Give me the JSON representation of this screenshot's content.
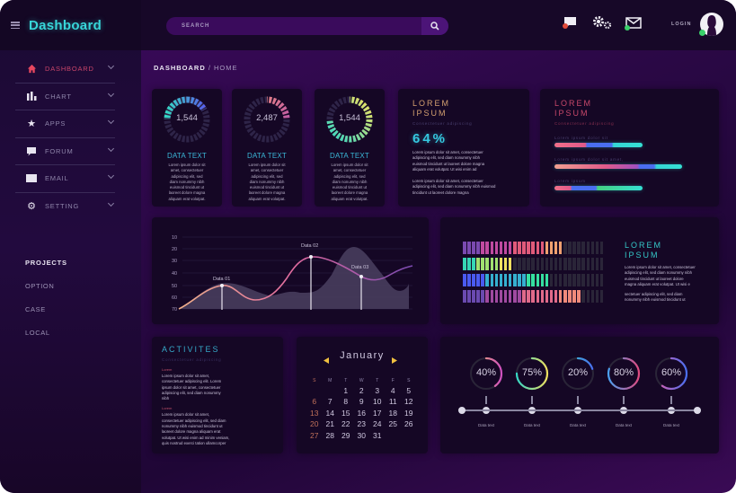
{
  "app": {
    "title": "Dashboard"
  },
  "topbar": {
    "search_placeholder": "SEARCH",
    "login_label": "LOGIN",
    "icons": [
      "chat-icon",
      "settings-gears-icon",
      "mail-icon",
      "search-icon",
      "user-avatar-icon"
    ]
  },
  "sidebar": {
    "items": [
      {
        "label": "DASHBOARD",
        "icon": "home-icon",
        "active": true
      },
      {
        "label": "CHART",
        "icon": "bar-chart-icon"
      },
      {
        "label": "APPS",
        "icon": "star-icon"
      },
      {
        "label": "FORUM",
        "icon": "speech-bubble-icon"
      },
      {
        "label": "EMAIL",
        "icon": "envelope-icon"
      },
      {
        "label": "SETTING",
        "icon": "gears-icon"
      }
    ],
    "projects": {
      "title": "PROJECTS",
      "items": [
        "OPTION",
        "CASE",
        "LOCAL"
      ]
    }
  },
  "breadcrumb": {
    "root": "DASHBOARD",
    "sep": " / ",
    "current": "HOME"
  },
  "stat_cards": [
    {
      "value": "1,544",
      "label": "DATA TEXT",
      "colors": [
        "#35d6c4",
        "#4a6ef0"
      ]
    },
    {
      "value": "2,487",
      "label": "DATA TEXT",
      "colors": [
        "#f08c7a",
        "#c44aa0"
      ]
    },
    {
      "value": "1,544",
      "label": "DATA TEXT",
      "colors": [
        "#f0e060",
        "#35d6c4"
      ]
    }
  ],
  "stat_lorem": [
    "Lorem ipsum dolor sit",
    "amet, consectetuer",
    "adipiscing elit, sed",
    "diam nonummy nibh",
    "euismod tincidunt ut",
    "laoreet dolore magna",
    "aliquam erat volutpat."
  ],
  "percent_card": {
    "title1": "LOREM",
    "title2": "IPSUM",
    "subtitle": "Consectetuer adipiscing",
    "value": "64%",
    "p1": [
      "Lorem ipsum dolor sit amet, consectetuer",
      "adipiscing elit, sed diam nonummy nibh",
      "euismod tincidunt ut laoreet dolore magna",
      "aliquam erat volutpat. Ut wisi enim ad"
    ],
    "p2": [
      "Lorem ipsum dolor sit amet, consectetuer",
      "adipiscing elit, sed diam nonummy nibh euismod",
      "tincidunt ut laoreet dolore magna"
    ]
  },
  "progress_card": {
    "title1": "LOREM",
    "title2": "IPSUM",
    "subtitle": "Consectetuer adipiscing",
    "bars": [
      {
        "label": "Lorem ipsum dolor sit",
        "width": 98
      },
      {
        "label": "Lorem ipsum dolor sit amet,",
        "width": 142
      },
      {
        "label": "Lorem ipsum",
        "width": 98
      }
    ]
  },
  "chart_data": {
    "type": "line",
    "title": "",
    "y_ticks": [
      "10",
      "20",
      "30",
      "40",
      "50",
      "60",
      "70"
    ],
    "ylim": [
      70,
      10
    ],
    "annotations": [
      {
        "label": "Data 01",
        "y": 50
      },
      {
        "label": "Data 02",
        "y": 25
      },
      {
        "label": "Data 03",
        "y": 41
      }
    ],
    "series": [
      {
        "name": "line",
        "values": [
          70,
          50,
          62,
          25,
          41,
          24
        ]
      },
      {
        "name": "area",
        "values": [
          70,
          47,
          57,
          55,
          19,
          60,
          47
        ]
      }
    ]
  },
  "bars_card": {
    "title1": "LOREM",
    "title2": "IPSUM",
    "p1": [
      "Lorem ipsum dolor sit amet, consectetuer",
      "adipiscing elit, sed diam nonummy nibh",
      "euismod tincidunt ut laoreet dolore",
      "magna aliquam erat volutpat. Ut wisi e"
    ],
    "p2": [
      "sectetuer adipiscing elit, sed diam",
      "nonummy nibh euismod tincidunt ut"
    ],
    "rows": [
      {
        "filled": 22,
        "total": 31
      },
      {
        "filled": 11,
        "total": 31
      },
      {
        "filled": 19,
        "total": 31
      },
      {
        "filled": 26,
        "total": 31
      }
    ]
  },
  "activities": {
    "title": "ACTIVITES",
    "subtitle": "Consectetuer adipiscing",
    "tag1": "Lorem",
    "p1": [
      "Lorem ipsum dolor sit amet,",
      "consectetuer adipiscing elit. Lorem",
      "ipsum dolor sit amet, consectetuer",
      "adipiscing elit, sed diam nonummy",
      "nibh"
    ],
    "tag2": "Lorem",
    "p2": [
      "Lorem ipsum dolor sit amet,",
      "consectetuer adipiscing elit, sed diam",
      "nonummy nibh euismod tincidunt ut",
      "laoreet dolore magna aliquam erat",
      "volutpat. Ut wisi enim ad minim veniam,",
      "quis nostrud exerci tation ullamcorper"
    ]
  },
  "calendar": {
    "month": "January",
    "weekdays": [
      "S",
      "M",
      "T",
      "W",
      "T",
      "F",
      "S"
    ],
    "days": [
      "",
      "",
      "1",
      "2",
      "3",
      "4",
      "5",
      "6",
      "7",
      "8",
      "9",
      "10",
      "11",
      "12",
      "13",
      "14",
      "15",
      "16",
      "17",
      "18",
      "19",
      "20",
      "21",
      "22",
      "23",
      "24",
      "25",
      "26",
      "27",
      "28",
      "29",
      "30",
      "31",
      "",
      "",
      "",
      ""
    ]
  },
  "timeline": {
    "items": [
      {
        "pct": "40%",
        "value": 40,
        "label": "Data text",
        "c1": "#f0c060",
        "c2": "#d050c0"
      },
      {
        "pct": "75%",
        "value": 75,
        "label": "Data text",
        "c1": "#35d6c4",
        "c2": "#f0e060"
      },
      {
        "pct": "20%",
        "value": 20,
        "label": "Data text",
        "c1": "#35d6c4",
        "c2": "#4a6ef0"
      },
      {
        "pct": "80%",
        "value": 80,
        "label": "Data text",
        "c1": "#4aa0f0",
        "c2": "#e04a80"
      },
      {
        "pct": "60%",
        "value": 60,
        "label": "Data text",
        "c1": "#e060b0",
        "c2": "#4a6ef0"
      }
    ]
  }
}
